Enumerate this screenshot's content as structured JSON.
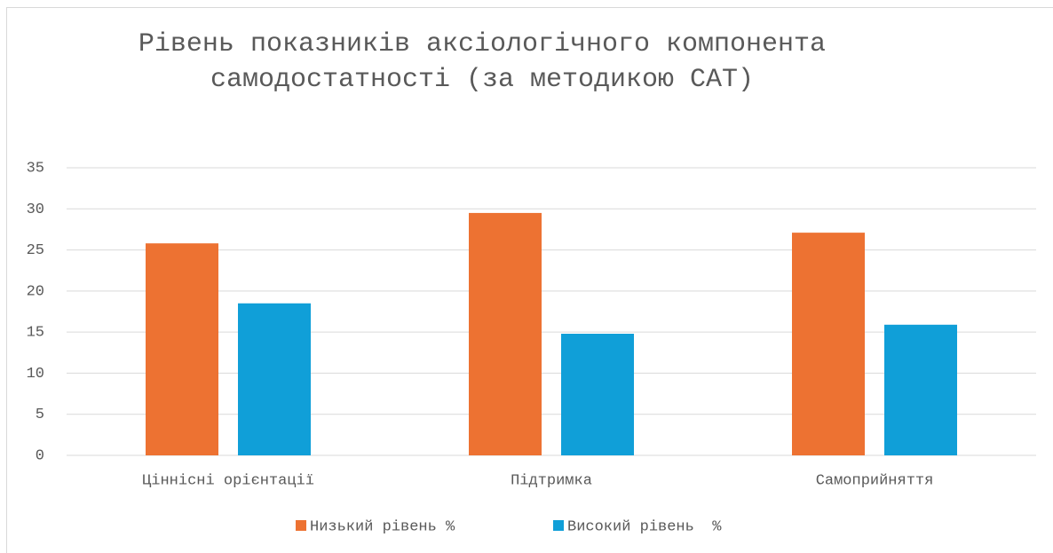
{
  "chart_data": {
    "type": "bar",
    "title": "Рівень показників аксіологічного компонента  самодостатності (за методикою САТ)",
    "categories": [
      "Ціннісні орієнтації",
      "Підтримка",
      "Самоприйняття"
    ],
    "series": [
      {
        "name": "Низький рівень %",
        "color": "#ed7232",
        "values": [
          25.8,
          29.5,
          27.1
        ]
      },
      {
        "name": "Високий рівень  %",
        "color": "#109fd8",
        "values": [
          18.5,
          14.8,
          15.9
        ]
      }
    ],
    "ylim": [
      0,
      35
    ],
    "yticks": [
      0,
      5,
      10,
      15,
      20,
      25,
      30,
      35
    ],
    "grid": true,
    "legend": "bottom"
  }
}
